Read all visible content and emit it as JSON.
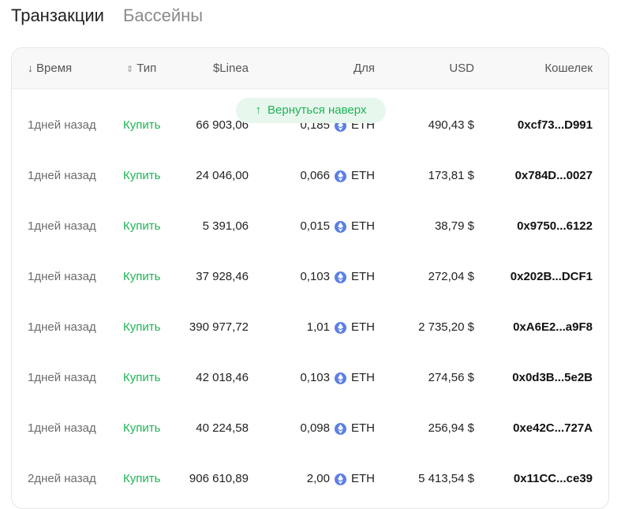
{
  "tabs": {
    "transactions": "Транзакции",
    "pools": "Бассейны"
  },
  "table": {
    "headers": {
      "time": "Время",
      "type": "Тип",
      "linea": "$Linea",
      "for": "Для",
      "usd": "USD",
      "wallet": "Кошелек"
    },
    "rows": [
      {
        "time": "1дней назад",
        "type": "Купить",
        "linea": "66 903,06",
        "amount": "0,185",
        "token": "ETH",
        "usd": "490,43 $",
        "wallet": "0xcf73...D991"
      },
      {
        "time": "1дней назад",
        "type": "Купить",
        "linea": "24 046,00",
        "amount": "0,066",
        "token": "ETH",
        "usd": "173,81 $",
        "wallet": "0x784D...0027"
      },
      {
        "time": "1дней назад",
        "type": "Купить",
        "linea": "5 391,06",
        "amount": "0,015",
        "token": "ETH",
        "usd": "38,79 $",
        "wallet": "0x9750...6122"
      },
      {
        "time": "1дней назад",
        "type": "Купить",
        "linea": "37 928,46",
        "amount": "0,103",
        "token": "ETH",
        "usd": "272,04 $",
        "wallet": "0x202B...DCF1"
      },
      {
        "time": "1дней назад",
        "type": "Купить",
        "linea": "390 977,72",
        "amount": "1,01",
        "token": "ETH",
        "usd": "2 735,20 $",
        "wallet": "0xA6E2...a9F8"
      },
      {
        "time": "1дней назад",
        "type": "Купить",
        "linea": "42 018,46",
        "amount": "0,103",
        "token": "ETH",
        "usd": "274,56 $",
        "wallet": "0x0d3B...5e2B"
      },
      {
        "time": "1дней назад",
        "type": "Купить",
        "linea": "40 224,58",
        "amount": "0,098",
        "token": "ETH",
        "usd": "256,94 $",
        "wallet": "0xe42C...727A"
      },
      {
        "time": "2дней назад",
        "type": "Купить",
        "linea": "906 610,89",
        "amount": "2,00",
        "token": "ETH",
        "usd": "5 413,54 $",
        "wallet": "0x11CC...ce39"
      }
    ]
  },
  "back_to_top": {
    "label": "Вернуться наверх",
    "icon": "arrow-up-icon"
  },
  "colors": {
    "buy": "#1fb355",
    "eth": "#5b7fe6",
    "pill_bg": "#e8f7ee"
  }
}
